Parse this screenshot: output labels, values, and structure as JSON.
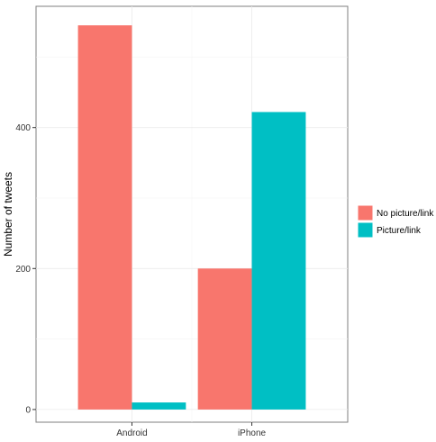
{
  "chart_data": {
    "type": "bar",
    "categories": [
      "Android",
      "iPhone"
    ],
    "series": [
      {
        "name": "No picture/link",
        "color": "#F8766D",
        "values": [
          545,
          200
        ]
      },
      {
        "name": "Picture/link",
        "color": "#00BFC4",
        "values": [
          10,
          422
        ]
      }
    ],
    "title": "",
    "xlabel": "",
    "ylabel": "Number of tweets",
    "ylim": [
      -18,
      572
    ],
    "yticks": [
      0,
      200,
      400
    ],
    "grid": true,
    "legend": "right"
  }
}
